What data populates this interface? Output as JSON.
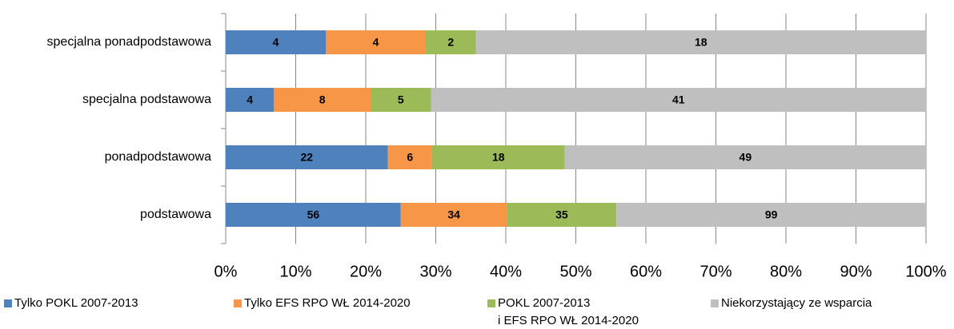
{
  "chart_data": {
    "type": "bar",
    "orientation": "horizontal",
    "stack": "percent",
    "categories": [
      "specjalna ponadpodstawowa",
      "specjalna podstawowa",
      "ponadpodstawowa",
      "podstawowa"
    ],
    "series": [
      {
        "name": "Tylko POKL 2007-2013",
        "color": "#4f81bd",
        "values": [
          4,
          4,
          22,
          56
        ]
      },
      {
        "name": "Tylko EFS RPO WŁ 2014-2020",
        "color": "#f79646",
        "values": [
          4,
          8,
          6,
          34
        ]
      },
      {
        "name": "POKL 2007-2013\ni EFS RPO WŁ 2014-2020",
        "color": "#9bbb59",
        "values": [
          2,
          5,
          18,
          35
        ]
      },
      {
        "name": "Niekorzystający ze wsparcia",
        "color": "#bfbfbf",
        "values": [
          18,
          41,
          49,
          99
        ]
      }
    ],
    "xlim": [
      0,
      100
    ],
    "xticks": [
      {
        "value": 0,
        "label": "0%"
      },
      {
        "value": 10,
        "label": "10%"
      },
      {
        "value": 20,
        "label": "20%"
      },
      {
        "value": 30,
        "label": "30%"
      },
      {
        "value": 40,
        "label": "40%"
      },
      {
        "value": 50,
        "label": "50%"
      },
      {
        "value": 60,
        "label": "60%"
      },
      {
        "value": 70,
        "label": "70%"
      },
      {
        "value": 80,
        "label": "80%"
      },
      {
        "value": 90,
        "label": "90%"
      },
      {
        "value": 100,
        "label": "100%"
      }
    ],
    "grid": true,
    "legend": "bottom"
  }
}
